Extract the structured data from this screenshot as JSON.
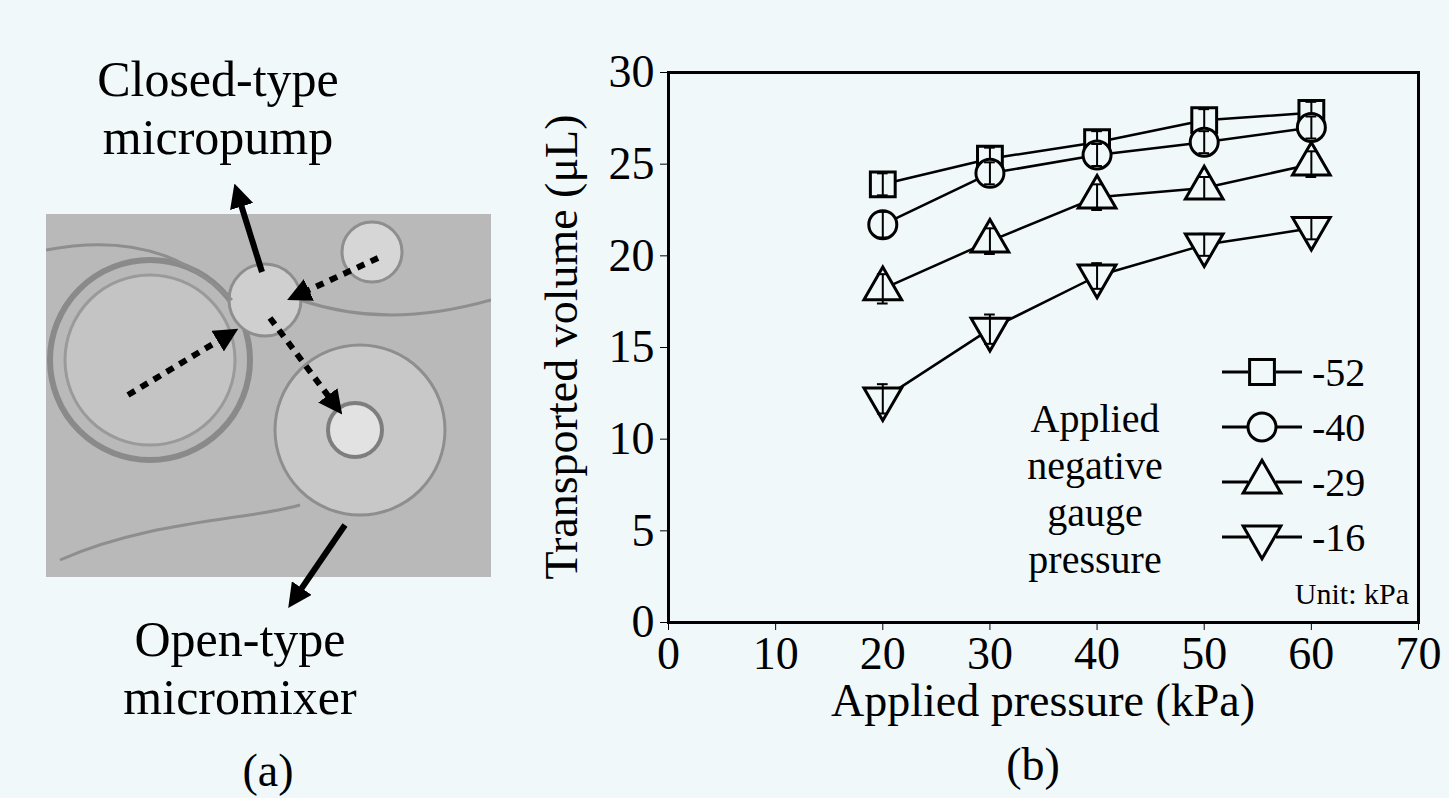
{
  "panel_a": {
    "label": "(a)",
    "annotations": [
      "Closed-type micropump",
      "Open-type micromixer"
    ]
  },
  "chart_data": {
    "type": "line",
    "panel_label": "(b)",
    "x_label": "Applied pressure (kPa)",
    "y_label": "Transported volume (μL)",
    "x": [
      20,
      30,
      40,
      50,
      60
    ],
    "series": [
      {
        "name": "-52",
        "color": "#000000",
        "marker": "square",
        "line_style": "solid",
        "values": [
          23.9,
          25.3,
          26.2,
          27.4,
          27.8
        ],
        "errors": [
          0.6,
          0.6,
          0.6,
          0.6,
          0.6
        ]
      },
      {
        "name": "-40",
        "color": "#000000",
        "marker": "circle",
        "line_style": "solid",
        "values": [
          21.7,
          24.5,
          25.5,
          26.2,
          27.0
        ],
        "errors": [
          0.7,
          0.6,
          0.6,
          0.6,
          0.6
        ]
      },
      {
        "name": "-29",
        "color": "#000000",
        "marker": "triangle-up",
        "line_style": "solid",
        "values": [
          18.2,
          20.8,
          23.2,
          23.7,
          25.0
        ],
        "errors": [
          0.8,
          0.7,
          0.7,
          0.6,
          0.7
        ]
      },
      {
        "name": "-16",
        "color": "#000000",
        "marker": "triangle-down",
        "line_style": "solid",
        "values": [
          12.2,
          16.0,
          18.9,
          20.6,
          21.5
        ],
        "errors": [
          0.8,
          0.8,
          0.7,
          0.6,
          0.6
        ]
      }
    ],
    "legend": "lower right",
    "legend_title": "Applied negative gauge pressure",
    "legend_note": "Unit: kPa",
    "xlim": [
      0,
      70
    ],
    "xticks": [
      0,
      10,
      20,
      30,
      40,
      50,
      60,
      70
    ],
    "ylim": [
      0,
      30
    ],
    "yticks": [
      0,
      5,
      10,
      15,
      20,
      25,
      30
    ],
    "grid": false
  }
}
